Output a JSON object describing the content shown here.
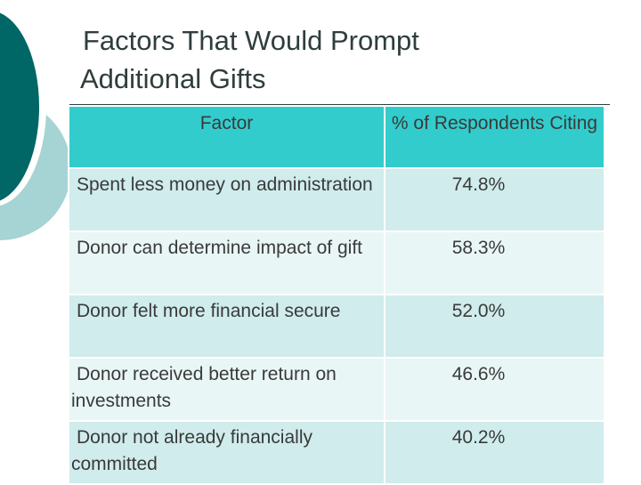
{
  "slide": {
    "title_line1": "Factors That Would Prompt",
    "title_line2": "Additional Gifts"
  },
  "table": {
    "headers": [
      "Factor",
      "% of Respondents Citing"
    ],
    "rows": [
      {
        "factor": "Spent less money on administration",
        "percent": "74.8%"
      },
      {
        "factor": "Donor can determine impact of gift",
        "percent": "58.3%"
      },
      {
        "factor": "Donor felt more financial secure",
        "percent": "52.0%"
      },
      {
        "factor": "Donor received better return on investments",
        "percent": "46.6%"
      },
      {
        "factor": "Donor not already financially committed",
        "percent": "40.2%"
      }
    ]
  },
  "colors": {
    "header_bg": "#33cccc",
    "row_odd_bg": "#d0ecec",
    "row_even_bg": "#e9f6f6",
    "decor_dark": "#006666",
    "decor_light": "#99cccc"
  }
}
